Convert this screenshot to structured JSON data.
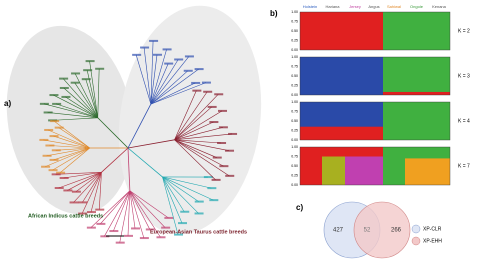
{
  "panel_a": {
    "label": "a)",
    "groups": [
      "African Indicus cattle breeds",
      "European-Asian Taurus cattle breeds"
    ]
  },
  "panel_b": {
    "label": "b)",
    "breeds": [
      "Holstein",
      "Hariana",
      "Jersey",
      "Angus",
      "Sahiwal",
      "Ongole",
      "Kenana"
    ],
    "yticks": [
      "1.00",
      "0.75",
      "0.50",
      "0.25",
      "0.00"
    ],
    "k_labels": [
      "K = 2",
      "K = 3",
      "K = 4",
      "K = 7"
    ]
  },
  "panel_c": {
    "label": "c)",
    "venn": {
      "left": 427,
      "overlap": 52,
      "right": 266
    },
    "legend": [
      "XP-CLR",
      "XP-EHH"
    ]
  }
}
